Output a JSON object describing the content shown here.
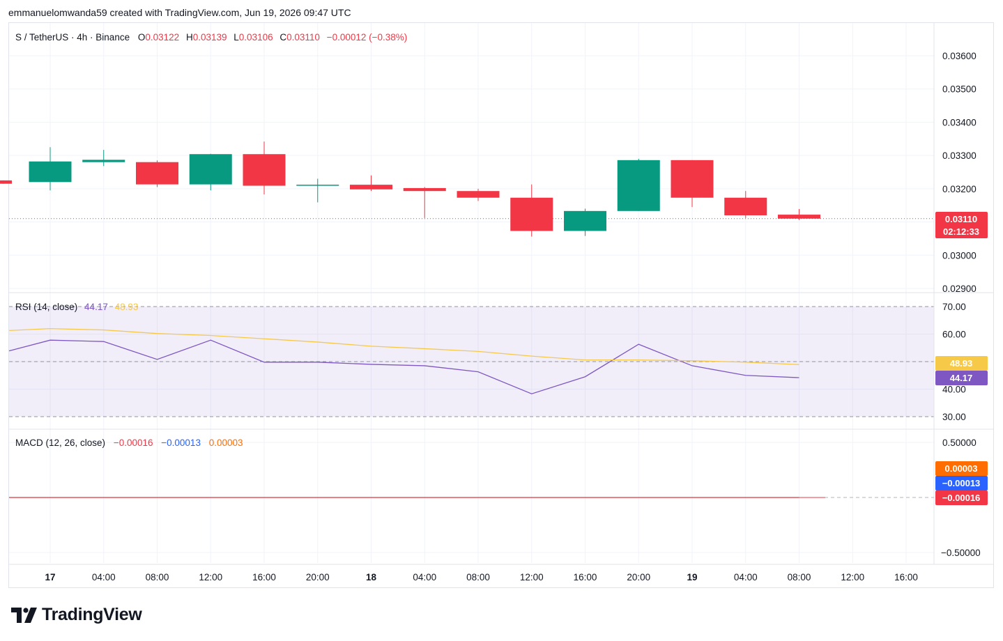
{
  "header": {
    "attribution": "emmanuelomwanda59 created with TradingView.com, Jun 19, 2026 09:47 UTC"
  },
  "colors": {
    "up": "#089981",
    "down": "#f23645",
    "rsi": "#7e57c2",
    "rsi_ma": "#f7c948",
    "macd": "#2962ff",
    "signal": "#ff6d00",
    "grid": "#f0f3fa"
  },
  "price_legend": {
    "symbol": "S / TetherUS · 4h · Binance",
    "o_label": "O",
    "o_value": "0.03122",
    "h_label": "H",
    "h_value": "0.03139",
    "l_label": "L",
    "l_value": "0.03106",
    "c_label": "C",
    "c_value": "0.03110",
    "change": "−0.00012 (−0.38%)"
  },
  "rsi_legend": {
    "title": "RSI (14, close)",
    "rsi_value": "44.17",
    "ma_value": "48.93"
  },
  "macd_legend": {
    "title": "MACD (12, 26, close)",
    "hist_value": "−0.00016",
    "macd_value": "−0.00013",
    "signal_value": "0.00003"
  },
  "price_tags": {
    "last": "0.03110",
    "countdown": "02:12:33"
  },
  "rsi_tags": {
    "ma": "48.93",
    "rsi": "44.17"
  },
  "macd_tags": {
    "signal": "0.00003",
    "macd": "−0.00013",
    "hist": "−0.00016"
  },
  "brand": {
    "name": "TradingView"
  },
  "chart_data": [
    {
      "type": "candlestick",
      "title": "S / TetherUS · 4h · Binance",
      "y_ticks": [
        "0.03600",
        "0.03500",
        "0.03400",
        "0.03300",
        "0.03200",
        "0.03000",
        "0.02900"
      ],
      "ylim": [
        0.0289,
        0.0364
      ],
      "x_ticks": [
        "17",
        "04:00",
        "08:00",
        "12:00",
        "16:00",
        "20:00",
        "18",
        "04:00",
        "08:00",
        "12:00",
        "16:00",
        "20:00",
        "19",
        "04:00",
        "08:00",
        "12:00",
        "16:00"
      ],
      "candles": [
        {
          "o": 0.03225,
          "h": 0.03225,
          "l": 0.03215,
          "c": 0.03215
        },
        {
          "o": 0.0322,
          "h": 0.03325,
          "l": 0.03195,
          "c": 0.03282
        },
        {
          "o": 0.0328,
          "h": 0.03317,
          "l": 0.03268,
          "c": 0.03287
        },
        {
          "o": 0.0328,
          "h": 0.03285,
          "l": 0.03205,
          "c": 0.03213
        },
        {
          "o": 0.03213,
          "h": 0.03305,
          "l": 0.03195,
          "c": 0.03304
        },
        {
          "o": 0.03304,
          "h": 0.03342,
          "l": 0.03183,
          "c": 0.03209
        },
        {
          "o": 0.03209,
          "h": 0.0323,
          "l": 0.03159,
          "c": 0.03212
        },
        {
          "o": 0.03212,
          "h": 0.0324,
          "l": 0.03193,
          "c": 0.03198
        },
        {
          "o": 0.03202,
          "h": 0.03205,
          "l": 0.03112,
          "c": 0.03193
        },
        {
          "o": 0.03193,
          "h": 0.032,
          "l": 0.03163,
          "c": 0.03173
        },
        {
          "o": 0.03173,
          "h": 0.03213,
          "l": 0.03056,
          "c": 0.03073
        },
        {
          "o": 0.03073,
          "h": 0.0314,
          "l": 0.03058,
          "c": 0.03133
        },
        {
          "o": 0.03133,
          "h": 0.0329,
          "l": 0.03133,
          "c": 0.03286
        },
        {
          "o": 0.03286,
          "h": 0.03286,
          "l": 0.03145,
          "c": 0.03173
        },
        {
          "o": 0.03173,
          "h": 0.03193,
          "l": 0.03112,
          "c": 0.0312
        },
        {
          "o": 0.03122,
          "h": 0.03139,
          "l": 0.03106,
          "c": 0.0311
        }
      ]
    },
    {
      "type": "line",
      "title": "RSI (14, close)",
      "y_ticks": [
        "70.00",
        "60.00",
        "40.00",
        "30.00"
      ],
      "ylim": [
        26,
        71
      ],
      "series": [
        {
          "name": "RSI",
          "values": [
            53.9,
            57.8,
            57.3,
            50.8,
            57.8,
            49.8,
            49.8,
            49.0,
            48.5,
            46.3,
            38.3,
            44.5,
            56.3,
            48.5,
            45.0,
            44.17
          ]
        },
        {
          "name": "MA",
          "values": [
            61.3,
            62.0,
            61.5,
            60.2,
            59.5,
            58.3,
            57.1,
            55.6,
            54.7,
            53.7,
            52.0,
            50.6,
            50.6,
            50.3,
            49.8,
            48.93
          ]
        }
      ]
    },
    {
      "type": "line",
      "title": "MACD (12, 26, close)",
      "y_ticks": [
        "0.50000",
        "−0.50000"
      ],
      "ylim": [
        -0.55,
        0.55
      ],
      "series": [
        {
          "name": "MACD",
          "values": [
            0.0001,
            0.0001,
            0.0001,
            0.0001,
            0.0001,
            0.0001,
            0.0001,
            0.0,
            0.0,
            0.0,
            0.0,
            -0.0001,
            -0.0001,
            -0.0001,
            -0.0001,
            -0.00013
          ]
        },
        {
          "name": "Signal",
          "values": [
            0.0001,
            0.0001,
            0.0001,
            0.0001,
            0.0001,
            0.0001,
            0.0001,
            0.0001,
            0.0001,
            0.0,
            0.0,
            0.0,
            0.0,
            0.0,
            0.0,
            3e-05
          ]
        },
        {
          "name": "Histogram",
          "values": [
            0,
            0,
            0,
            0,
            0,
            0,
            0,
            0,
            0,
            0,
            0,
            0,
            0,
            0,
            0,
            -0.00016
          ]
        }
      ]
    }
  ]
}
